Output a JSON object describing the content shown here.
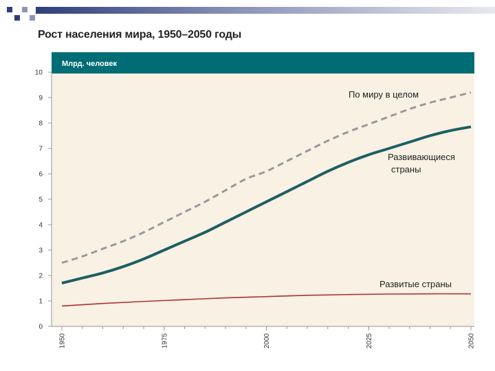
{
  "slide": {
    "title": "Рост населения мира, 1950–2050 годы",
    "accent_color": "#2f3e7a",
    "square_colors": [
      "#2f3e7a",
      "#8d95b8",
      "#2f3e7a",
      "#8d95b8"
    ]
  },
  "chart_data": {
    "type": "line",
    "title": "Рост населения мира, 1950–2050 годы",
    "unit_label": "Млрд. человек",
    "xlim": [
      1950,
      2050
    ],
    "ylim": [
      0,
      10
    ],
    "x_ticks": [
      "1950",
      "1975",
      "2000",
      "2025",
      "2050"
    ],
    "y_ticks": [
      "0",
      "1",
      "2",
      "3",
      "4",
      "5",
      "6",
      "7",
      "8",
      "9",
      "10"
    ],
    "grid": false,
    "colors": {
      "plot_bg": "#f8f1e4",
      "header_bg": "#006d75",
      "axis": "#999999"
    },
    "series": [
      {
        "name": "По миру в целом",
        "style": "dashed",
        "color": "#999999",
        "x": [
          1950,
          1955,
          1960,
          1965,
          1970,
          1975,
          1980,
          1985,
          1990,
          1995,
          2000,
          2005,
          2010,
          2015,
          2020,
          2025,
          2030,
          2035,
          2040,
          2045,
          2050
        ],
        "y": [
          2.5,
          2.75,
          3.05,
          3.35,
          3.7,
          4.1,
          4.5,
          4.9,
          5.35,
          5.8,
          6.1,
          6.5,
          6.9,
          7.3,
          7.65,
          7.95,
          8.25,
          8.55,
          8.8,
          9.0,
          9.2
        ]
      },
      {
        "name": "Развивающиеся страны",
        "style": "solid",
        "color": "#1d5f63",
        "x": [
          1950,
          1955,
          1960,
          1965,
          1970,
          1975,
          1980,
          1985,
          1990,
          1995,
          2000,
          2005,
          2010,
          2015,
          2020,
          2025,
          2030,
          2035,
          2040,
          2045,
          2050
        ],
        "y": [
          1.7,
          1.9,
          2.1,
          2.35,
          2.65,
          3.0,
          3.35,
          3.7,
          4.1,
          4.5,
          4.9,
          5.3,
          5.7,
          6.1,
          6.45,
          6.75,
          7.0,
          7.25,
          7.5,
          7.7,
          7.85
        ]
      },
      {
        "name": "Развитые страны",
        "style": "solid",
        "color": "#b03030",
        "x": [
          1950,
          1960,
          1970,
          1980,
          1990,
          2000,
          2010,
          2020,
          2030,
          2040,
          2050
        ],
        "y": [
          0.8,
          0.9,
          0.98,
          1.05,
          1.12,
          1.17,
          1.22,
          1.25,
          1.27,
          1.28,
          1.28
        ]
      }
    ]
  }
}
